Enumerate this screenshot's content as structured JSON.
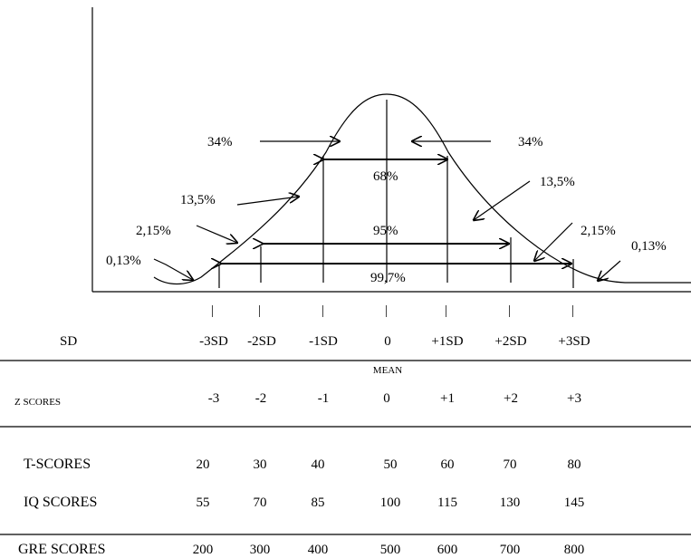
{
  "curve": {
    "pct_left": [
      "34%",
      "13,5%",
      "2,15%",
      "0,13%"
    ],
    "pct_right": [
      "34%",
      "13,5%",
      "2,15%",
      "0,13%"
    ],
    "pct_center": [
      "68%",
      "95%",
      "99,7%"
    ],
    "tick_marks": [
      "|",
      "|",
      "|",
      "|",
      "|",
      "|",
      "|"
    ]
  },
  "sd_row": {
    "label": "SD",
    "values": [
      "-3SD",
      "-2SD",
      "-1SD",
      "0",
      "+1SD",
      "+2SD",
      "+3SD"
    ]
  },
  "mean_label": "MEAN",
  "rows": [
    {
      "label": "Z  SCORES",
      "values": [
        "-3",
        "-2",
        "-1",
        "0",
        "+1",
        "+2",
        "+3"
      ]
    },
    {
      "label": "T-SCORES",
      "values": [
        "20",
        "30",
        "40",
        "50",
        "60",
        "70",
        "80"
      ]
    },
    {
      "label": "IQ  SCORES",
      "values": [
        "55",
        "70",
        "85",
        "100",
        "115",
        "130",
        "145"
      ]
    },
    {
      "label": "GRE SCORES",
      "values": [
        "200",
        "300",
        "400",
        "500",
        "600",
        "700",
        "800"
      ]
    }
  ]
}
